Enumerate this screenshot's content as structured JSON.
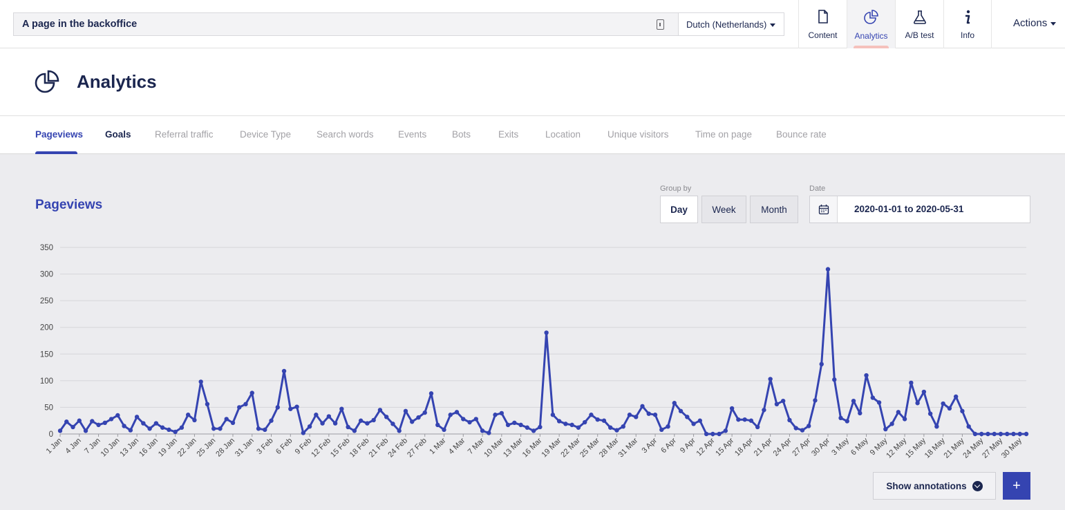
{
  "topbar": {
    "page_name": "A page in the backoffice",
    "language": "Dutch (Netherlands)",
    "apps": [
      {
        "label": "Content",
        "icon": "document-icon"
      },
      {
        "label": "Analytics",
        "icon": "pie-chart-icon",
        "active": true
      },
      {
        "label": "A/B test",
        "icon": "flask-icon"
      },
      {
        "label": "Info",
        "icon": "info-icon"
      }
    ],
    "actions_label": "Actions"
  },
  "header": {
    "title": "Analytics"
  },
  "tabs": [
    "Pageviews",
    "Goals",
    "Referral traffic",
    "Device Type",
    "Search words",
    "Events",
    "Bots",
    "Exits",
    "Location",
    "Unique visitors",
    "Time on page",
    "Bounce rate"
  ],
  "main": {
    "section_title": "Pageviews",
    "group_by_label": "Group by",
    "group_options": [
      "Day",
      "Week",
      "Month"
    ],
    "selected_group": "Day",
    "date_label": "Date",
    "date_range": "2020-01-01 to 2020-05-31",
    "show_annotations": "Show annotations",
    "add_label": "+"
  },
  "colors": {
    "accent": "#3544b1",
    "text": "#1b264f",
    "line": "#3544b1"
  },
  "chart_data": {
    "type": "line",
    "title": "",
    "xlabel": "",
    "ylabel": "",
    "ylim": [
      0,
      350
    ],
    "yticks": [
      0,
      50,
      100,
      150,
      200,
      250,
      300,
      350
    ],
    "x_tick_labels": [
      "1 Jan",
      "4 Jan",
      "7 Jan",
      "10 Jan",
      "13 Jan",
      "16 Jan",
      "19 Jan",
      "22 Jan",
      "25 Jan",
      "28 Jan",
      "31 Jan",
      "3 Feb",
      "6 Feb",
      "9 Feb",
      "12 Feb",
      "15 Feb",
      "18 Feb",
      "21 Feb",
      "24 Feb",
      "27 Feb",
      "1 Mar",
      "4 Mar",
      "7 Mar",
      "10 Mar",
      "13 Mar",
      "16 Mar",
      "19 Mar",
      "22 Mar",
      "25 Mar",
      "28 Mar",
      "31 Mar",
      "3 Apr",
      "6 Apr",
      "9 Apr",
      "12 Apr",
      "15 Apr",
      "18 Apr",
      "21 Apr",
      "24 Apr",
      "27 Apr",
      "30 Apr",
      "3 May",
      "6 May",
      "9 May",
      "12 May",
      "15 May",
      "18 May",
      "21 May",
      "24 May",
      "27 May",
      "30 May"
    ],
    "x_start": "2020-01-01",
    "x_end": "2020-05-31",
    "series": [
      {
        "values": [
          6,
          23,
          13,
          25,
          6,
          24,
          17,
          21,
          28,
          35,
          15,
          7,
          32,
          20,
          10,
          20,
          12,
          8,
          4,
          12,
          36,
          26,
          98,
          56,
          10,
          10,
          28,
          21,
          50,
          56,
          77,
          10,
          8,
          25,
          50,
          118,
          47,
          51,
          2,
          14,
          36,
          20,
          33,
          20,
          47,
          13,
          6,
          25,
          20,
          26,
          45,
          32,
          19,
          6,
          43,
          23,
          31,
          40,
          76,
          17,
          8,
          36,
          41,
          28,
          22,
          28,
          6,
          2,
          36,
          39,
          17,
          21,
          17,
          12,
          6,
          13,
          190,
          36,
          24,
          19,
          17,
          12,
          22,
          36,
          27,
          25,
          12,
          7,
          14,
          36,
          32,
          52,
          38,
          36,
          8,
          14,
          58,
          43,
          32,
          19,
          25,
          0,
          0,
          0,
          6,
          48,
          27,
          27,
          25,
          13,
          45,
          103,
          56,
          62,
          26,
          11,
          7,
          15,
          63,
          131,
          309,
          102,
          30,
          24,
          62,
          39,
          110,
          68,
          59,
          9,
          19,
          41,
          28,
          96,
          58,
          79,
          38,
          14,
          57,
          48,
          70,
          43,
          14,
          0,
          0,
          0,
          0,
          0,
          0,
          0,
          0,
          0
        ]
      }
    ],
    "grid": true,
    "legend": "none"
  }
}
